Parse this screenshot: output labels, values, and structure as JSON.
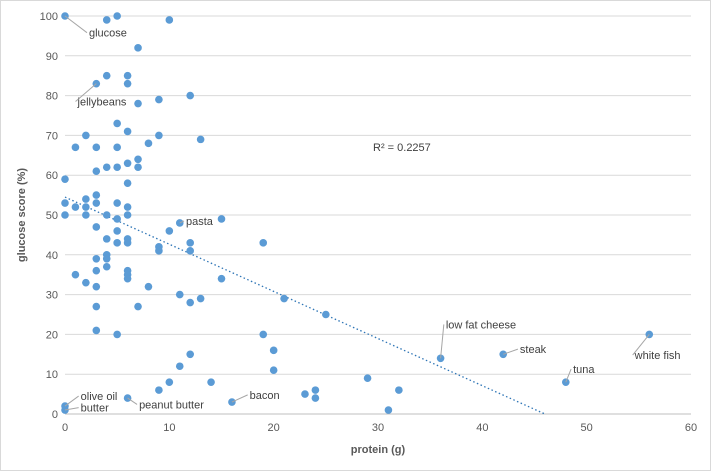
{
  "chart_data": {
    "type": "scatter",
    "xlabel": "protein (g)",
    "ylabel": "glucose score (%)",
    "xlim": [
      0,
      60
    ],
    "ylim": [
      0,
      100
    ],
    "xticks": [
      0,
      10,
      20,
      30,
      40,
      50,
      60
    ],
    "yticks": [
      0,
      10,
      20,
      30,
      40,
      50,
      60,
      70,
      80,
      90,
      100
    ],
    "grid": "horizontal",
    "point_color": "#5b9bd5",
    "trendline": {
      "type": "linear",
      "style": "dotted",
      "color": "#2e75b6",
      "points": [
        [
          0,
          54.5
        ],
        [
          46,
          0
        ]
      ],
      "r_squared_label": "R² = 0.2257"
    },
    "points": [
      [
        0,
        100
      ],
      [
        4,
        99
      ],
      [
        5,
        100
      ],
      [
        10,
        99
      ],
      [
        7,
        92
      ],
      [
        3,
        83
      ],
      [
        4,
        85
      ],
      [
        6,
        85
      ],
      [
        6,
        83
      ],
      [
        7,
        78
      ],
      [
        9,
        79
      ],
      [
        12,
        80
      ],
      [
        5,
        73
      ],
      [
        2,
        70
      ],
      [
        6,
        71
      ],
      [
        9,
        70
      ],
      [
        13,
        69
      ],
      [
        1,
        67
      ],
      [
        3,
        67
      ],
      [
        5,
        67
      ],
      [
        8,
        68
      ],
      [
        7,
        64
      ],
      [
        6,
        63
      ],
      [
        4,
        62
      ],
      [
        5,
        62
      ],
      [
        7,
        62
      ],
      [
        3,
        61
      ],
      [
        0,
        59
      ],
      [
        6,
        58
      ],
      [
        3,
        55
      ],
      [
        0,
        53
      ],
      [
        1,
        52
      ],
      [
        2,
        52
      ],
      [
        2,
        54
      ],
      [
        3,
        53
      ],
      [
        5,
        53
      ],
      [
        6,
        52
      ],
      [
        0,
        50
      ],
      [
        2,
        50
      ],
      [
        4,
        50
      ],
      [
        5,
        49
      ],
      [
        6,
        50
      ],
      [
        15,
        49
      ],
      [
        11,
        48
      ],
      [
        3,
        47
      ],
      [
        10,
        46
      ],
      [
        5,
        46
      ],
      [
        4,
        44
      ],
      [
        5,
        43
      ],
      [
        6,
        44
      ],
      [
        6,
        43
      ],
      [
        12,
        43
      ],
      [
        19,
        43
      ],
      [
        9,
        42
      ],
      [
        9,
        41
      ],
      [
        12,
        41
      ],
      [
        4,
        40
      ],
      [
        4,
        39
      ],
      [
        3,
        39
      ],
      [
        4,
        37
      ],
      [
        6,
        36
      ],
      [
        1,
        35
      ],
      [
        3,
        36
      ],
      [
        6,
        35
      ],
      [
        6,
        34
      ],
      [
        15,
        34
      ],
      [
        2,
        33
      ],
      [
        3,
        32
      ],
      [
        8,
        32
      ],
      [
        11,
        30
      ],
      [
        13,
        29
      ],
      [
        12,
        28
      ],
      [
        21,
        29
      ],
      [
        3,
        27
      ],
      [
        7,
        27
      ],
      [
        25,
        25
      ],
      [
        3,
        21
      ],
      [
        5,
        20
      ],
      [
        19,
        20
      ],
      [
        20,
        16
      ],
      [
        56,
        20
      ],
      [
        36,
        14
      ],
      [
        42,
        15
      ],
      [
        12,
        15
      ],
      [
        11,
        12
      ],
      [
        20,
        11
      ],
      [
        29,
        9
      ],
      [
        48,
        8
      ],
      [
        10,
        8
      ],
      [
        14,
        8
      ],
      [
        9,
        6
      ],
      [
        24,
        6
      ],
      [
        32,
        6
      ],
      [
        23,
        5
      ],
      [
        24,
        4
      ],
      [
        6,
        4
      ],
      [
        16,
        3
      ],
      [
        0,
        2
      ],
      [
        0,
        1
      ],
      [
        31,
        1
      ]
    ],
    "annotations": [
      {
        "text": "glucose",
        "point": [
          0,
          100
        ],
        "label_at": [
          2.3,
          94.8
        ],
        "anchor": "start"
      },
      {
        "text": "jellybeans",
        "point": [
          3,
          83
        ],
        "label_at": [
          1.2,
          77.5
        ],
        "anchor": "start"
      },
      {
        "text": "pasta",
        "point": [
          11,
          48
        ],
        "label_at": [
          11.6,
          47.5
        ],
        "anchor": "start"
      },
      {
        "text": "low fat cheese",
        "point": [
          36,
          14
        ],
        "label_at": [
          36.5,
          21.5
        ],
        "anchor": "start"
      },
      {
        "text": "steak",
        "point": [
          42,
          15
        ],
        "label_at": [
          43.6,
          15.3
        ],
        "anchor": "start"
      },
      {
        "text": "tuna",
        "point": [
          48,
          8
        ],
        "label_at": [
          48.7,
          10.3
        ],
        "anchor": "start"
      },
      {
        "text": "white fish",
        "point": [
          56,
          20
        ],
        "label_at": [
          54.6,
          13.8
        ],
        "anchor": "start"
      },
      {
        "text": "bacon",
        "point": [
          16,
          3
        ],
        "label_at": [
          17.7,
          3.8
        ],
        "anchor": "start"
      },
      {
        "text": "peanut butter",
        "point": [
          6,
          4
        ],
        "label_at": [
          7.1,
          1.4
        ],
        "anchor": "start"
      },
      {
        "text": "olive oil",
        "point": [
          0,
          2
        ],
        "label_at": [
          1.5,
          3.5
        ],
        "anchor": "start"
      },
      {
        "text": "butter",
        "point": [
          0,
          1
        ],
        "label_at": [
          1.5,
          0.6
        ],
        "anchor": "start"
      }
    ]
  }
}
